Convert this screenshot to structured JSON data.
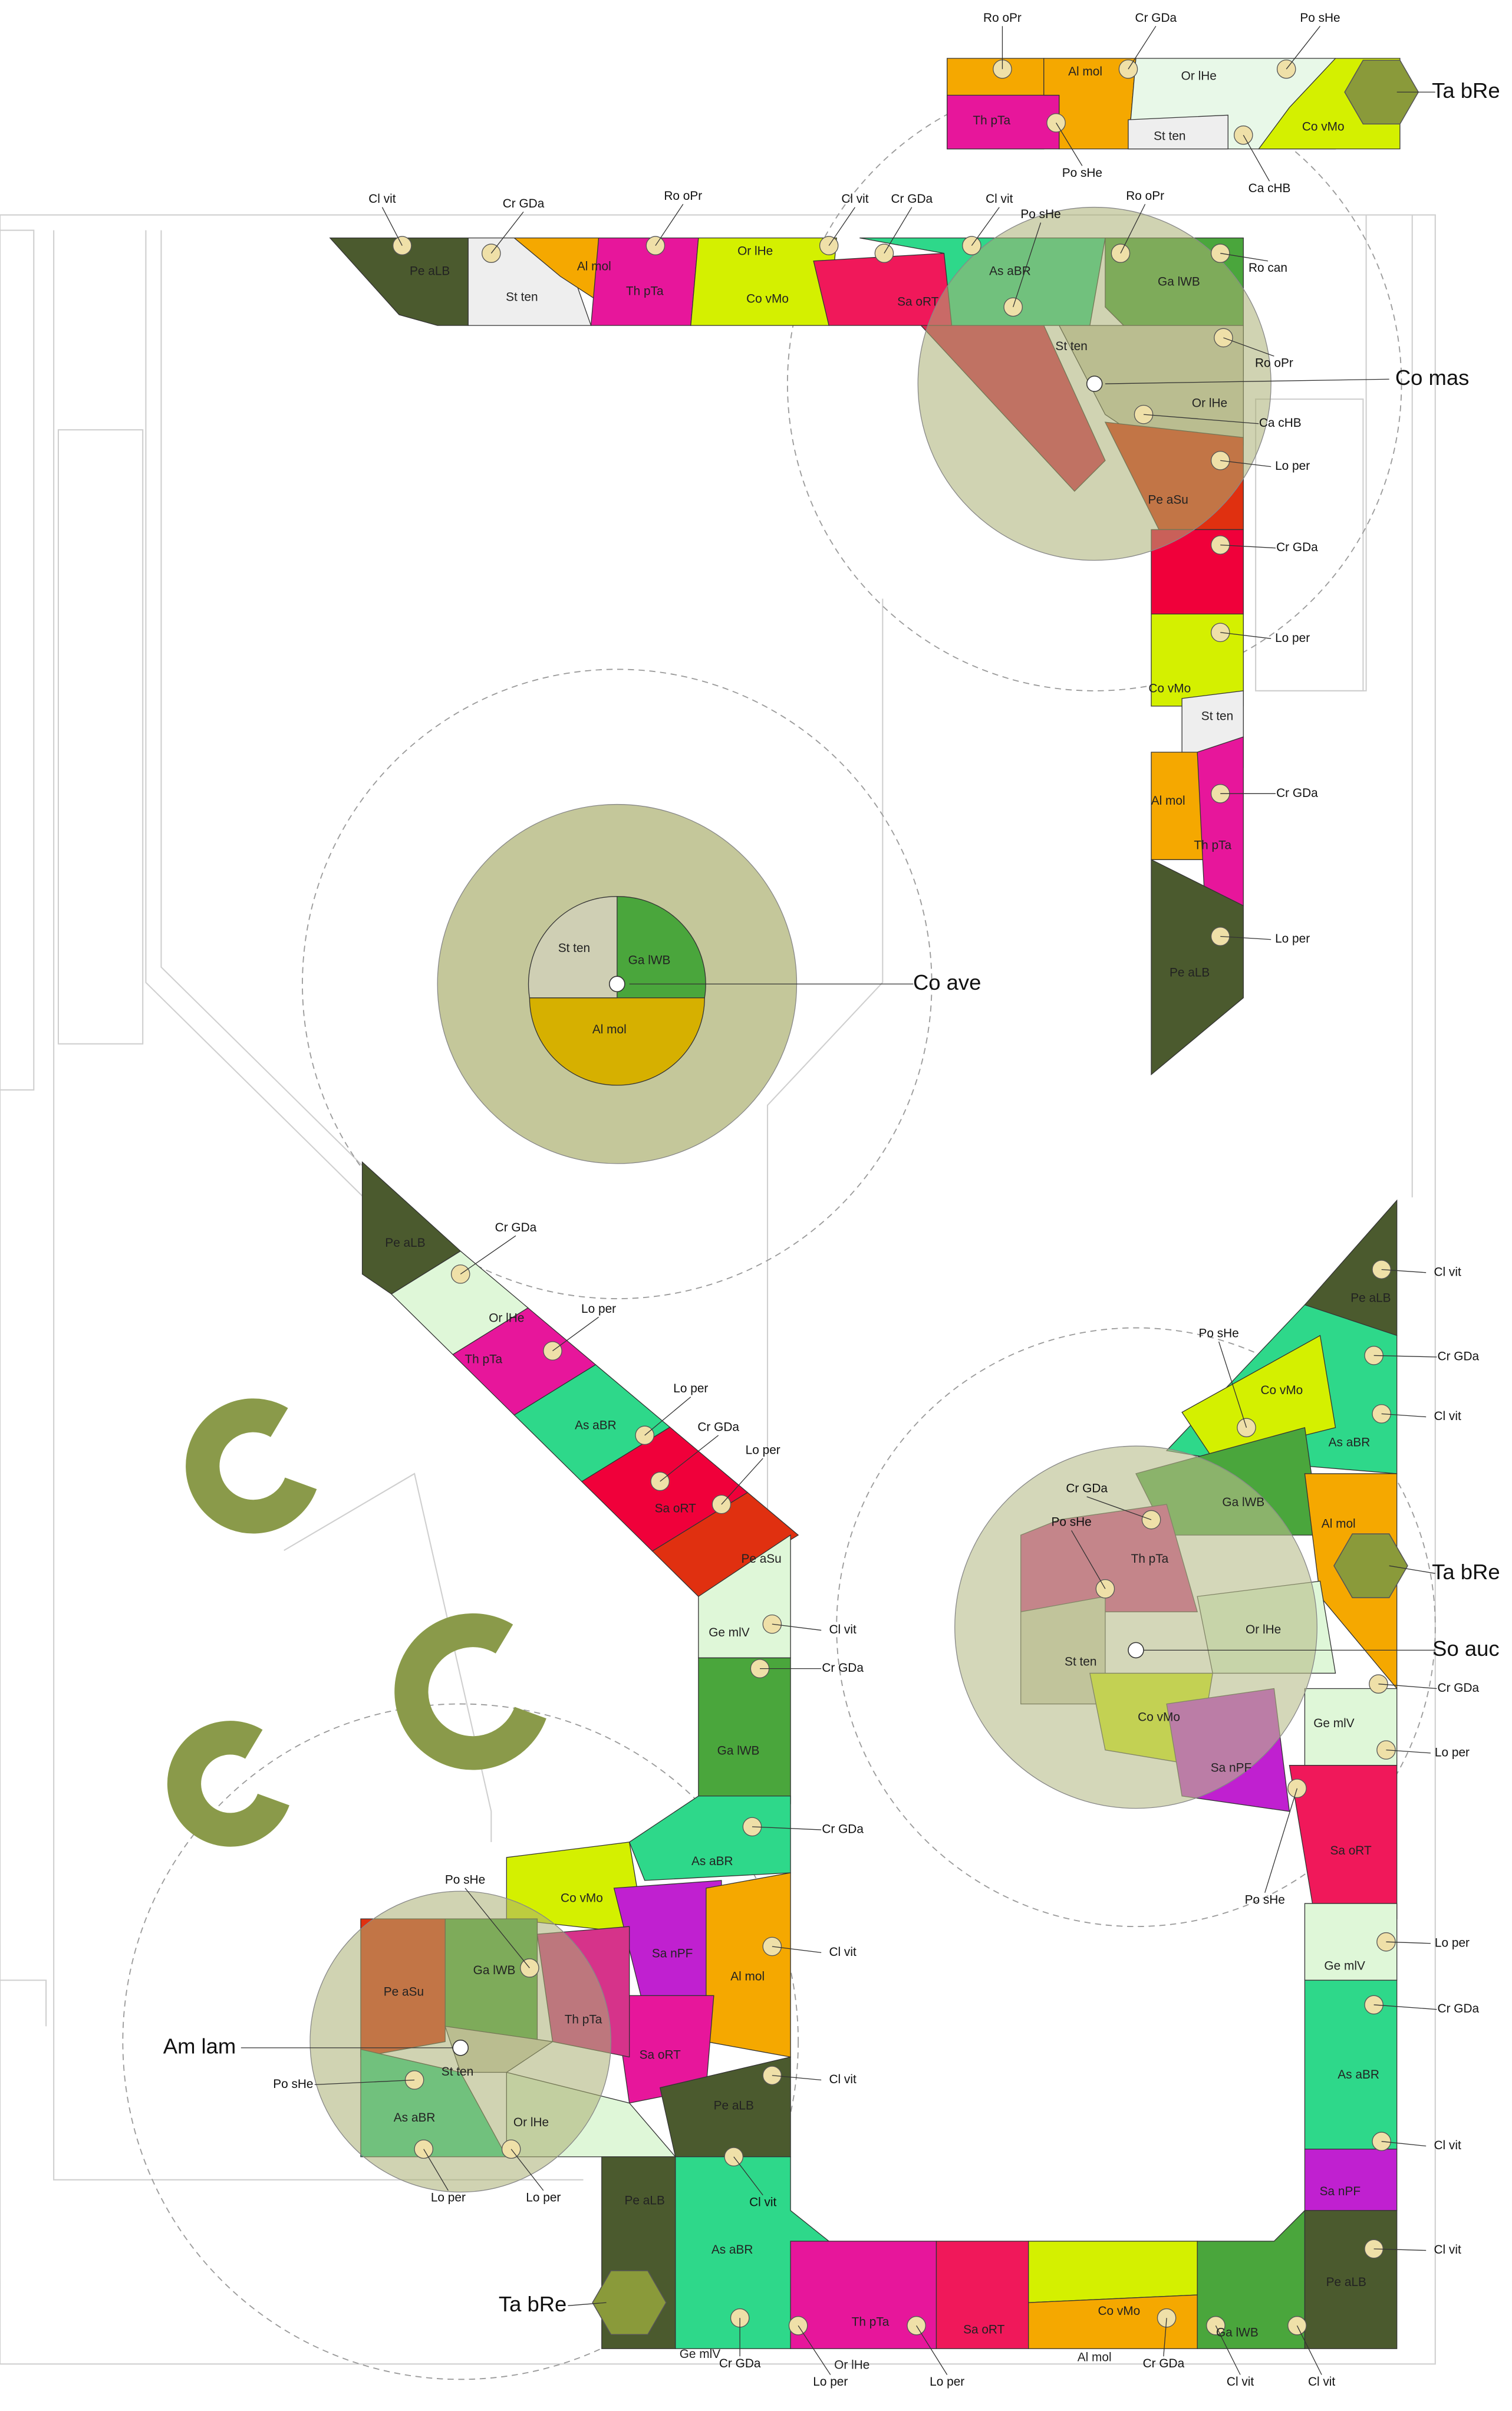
{
  "plant_tags": [
    "Ta bRe",
    "Co mas",
    "Co ave",
    "Ta bRe",
    "So auc",
    "Am lam",
    "Ta bRe"
  ],
  "callouts": [
    "Ro oPr",
    "Cr GDa",
    "Po sHe",
    "Po sHe",
    "Ca cHB",
    "Cl vit",
    "Cr GDa",
    "Ro oPr",
    "Cl vit",
    "Cr GDa",
    "Cl vit",
    "Po sHe",
    "Ro oPr",
    "Ro can",
    "Ca cHB",
    "Lo per",
    "Cr GDa",
    "Lo per",
    "Cr GDa",
    "Lo per",
    "Cr GDa",
    "Lo per",
    "Lo per",
    "Cr GDa",
    "Lo per",
    "Cl vit",
    "Cr GDa",
    "Cr GDa",
    "Cl vit",
    "Cl vit",
    "Po sHe",
    "Po sHe",
    "Lo per",
    "Lo per",
    "Cl vit",
    "Cl vit",
    "Cr GDa",
    "Cl vit",
    "Po sHe",
    "Cr GDa",
    "Po sHe",
    "Cr GDa",
    "Lo per",
    "Po sHe",
    "Lo per",
    "Cr GDa",
    "Cl vit",
    "Cl vit",
    "Cl vit",
    "Cl vit",
    "Cr GDa",
    "Lo per",
    "Lo per",
    "Cr GDa",
    "Ro oPr"
  ],
  "zone_labels": [
    "Al mol",
    "Or lHe",
    "Th pTa",
    "St ten",
    "Co vMo",
    "Pe aLB",
    "St ten",
    "Al mol",
    "Th pTa",
    "Or lHe",
    "Co vMo",
    "Sa oRT",
    "As aBR",
    "Ga lWB",
    "St ten",
    "Or lHe",
    "Pe aSu",
    "Co vMo",
    "St ten",
    "Al mol",
    "Th pTa",
    "Pe aLB",
    "St ten",
    "Ga lWB",
    "Al mol",
    "Pe aLB",
    "Or lHe",
    "Th pTa",
    "As aBR",
    "Sa oRT",
    "Pe aSu",
    "Ge mlV",
    "Ga lWB",
    "As aBR",
    "Co vMo",
    "Sa nPF",
    "Ga lWB",
    "Pe aSu",
    "Th pTa",
    "Al mol",
    "Sa oRT",
    "St ten",
    "As aBR",
    "Or lHe",
    "Pe aLB",
    "Pe aLB",
    "As aBR",
    "Ge mlV",
    "Th pTa",
    "Or lHe",
    "Sa oRT",
    "Co vMo",
    "Al mol",
    "Ga lWB",
    "Pe aLB",
    "Sa nPF",
    "As aBR",
    "Ge mlV",
    "Sa oRT",
    "Ge mlV",
    "Sa nPF",
    "Co vMo",
    "St ten",
    "Or lHe",
    "Th pTa",
    "Ga lWB",
    "Al mol",
    "As aBR",
    "Co vMo",
    "Pe aLB"
  ]
}
